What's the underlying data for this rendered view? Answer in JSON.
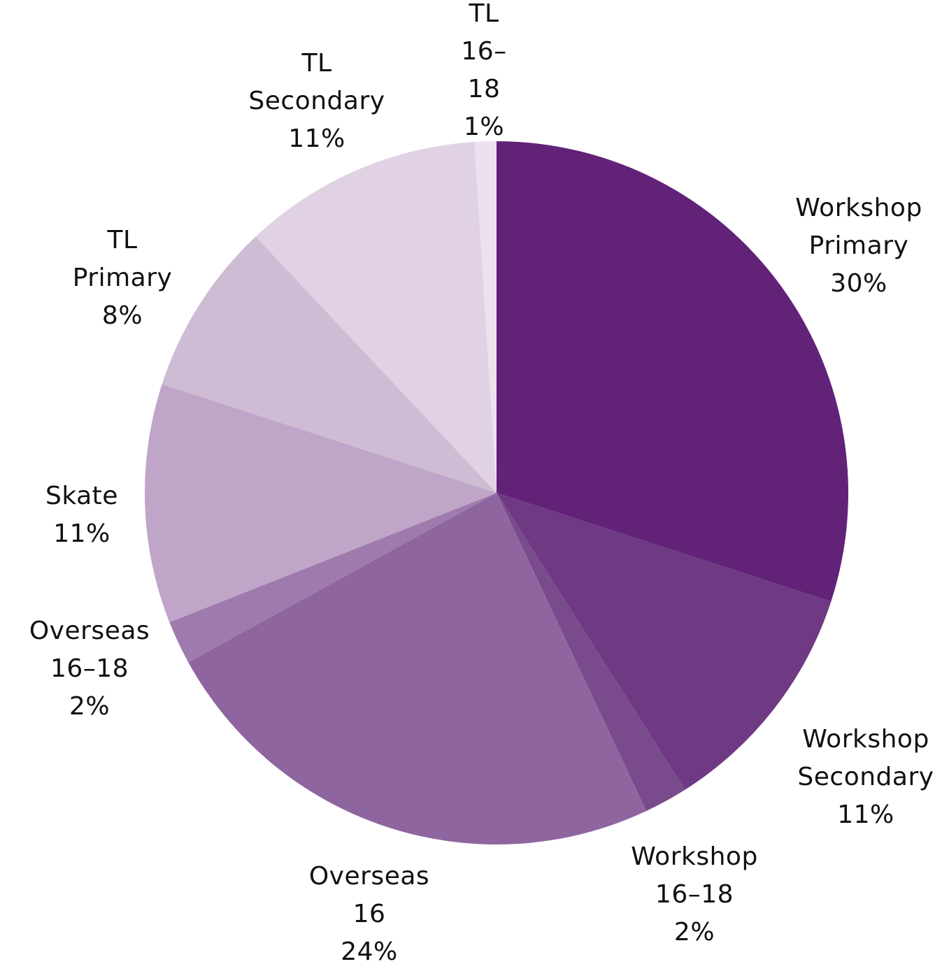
{
  "chart_data": {
    "type": "pie",
    "categories": [
      "Workshop Primary",
      "Workshop Secondary",
      "Workshop 16–18",
      "Overseas 16",
      "Overseas 16–18",
      "Skate",
      "TL Primary",
      "TL Secondary",
      "TL 16–18"
    ],
    "values": [
      30,
      11,
      2,
      24,
      2,
      11,
      8,
      11,
      1
    ],
    "value_labels": [
      "30%",
      "11%",
      "2%",
      "24%",
      "2%",
      "11%",
      "8%",
      "11%",
      "1%"
    ],
    "colors": [
      "#612278",
      "#6f3984",
      "#7a4b8c",
      "#8f65a0",
      "#9f7aac",
      "#bfa5c7",
      "#cebbd4",
      "#e0d2e4",
      "#ebe2ee"
    ]
  }
}
